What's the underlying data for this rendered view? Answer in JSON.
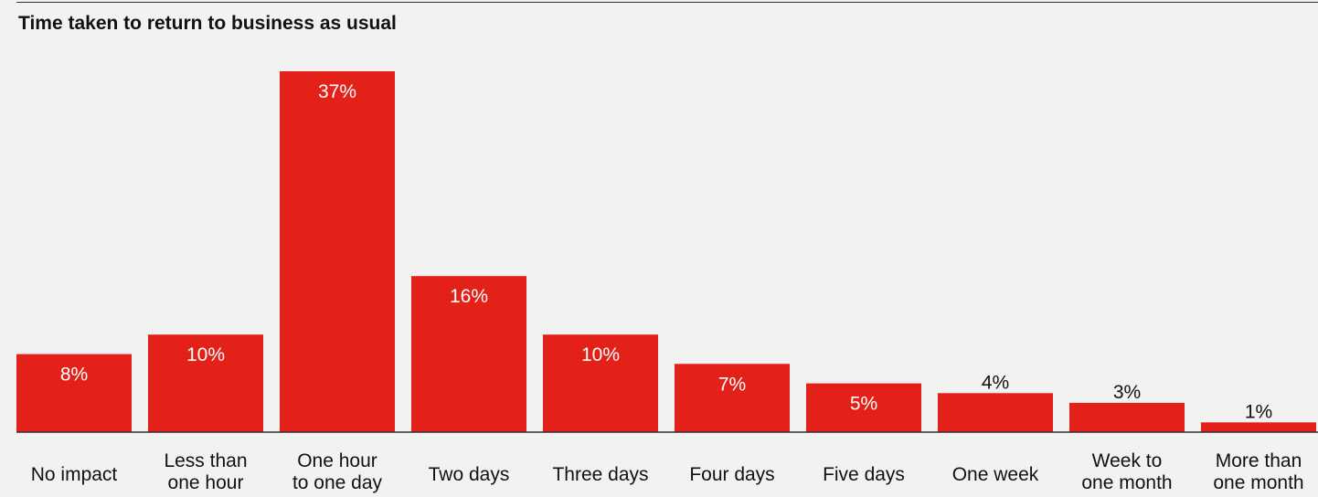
{
  "chart_data": {
    "type": "bar",
    "title": "Time taken to return to business as usual",
    "categories": [
      [
        "No impact"
      ],
      [
        "Less than",
        "one hour"
      ],
      [
        "One hour",
        "to one day"
      ],
      [
        "Two days"
      ],
      [
        "Three days"
      ],
      [
        "Four days"
      ],
      [
        "Five days"
      ],
      [
        "One week"
      ],
      [
        "Week to",
        "one month"
      ],
      [
        "More than",
        "one month"
      ]
    ],
    "values": [
      8,
      10,
      37,
      16,
      10,
      7,
      5,
      4,
      3,
      1
    ],
    "value_labels": [
      "8%",
      "10%",
      "37%",
      "16%",
      "10%",
      "7%",
      "5%",
      "4%",
      "3%",
      "1%"
    ],
    "unit": "%",
    "ylim": [
      0,
      37
    ],
    "grid": false,
    "legend": "none",
    "colors": {
      "bar": "#e32119",
      "label_inside": "#ffffff",
      "label_outside": "#111111",
      "axis": "#333333",
      "background": "#f2f2f2"
    }
  }
}
